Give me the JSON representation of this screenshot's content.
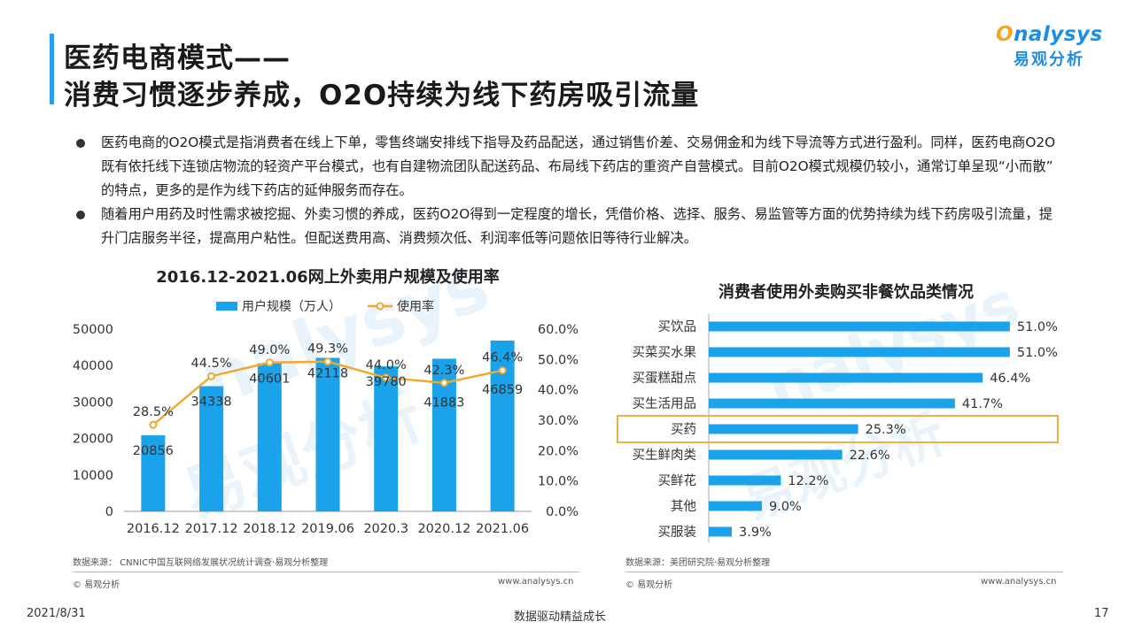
{
  "page": {
    "title_line1": "医药电商模式——",
    "title_line2": "消费习惯逐步养成，O2O持续为线下药房吸引流量",
    "logo_en_prefix": "O",
    "logo_en_rest": "nalysys",
    "logo_cn": "易观分析",
    "bullets": [
      "医药电商的O2O模式是指消费者在线上下单，零售终端安排线下指导及药品配送，通过销售价差、交易佣金和为线下导流等方式进行盈利。同样，医药电商O2O既有依托线下连锁店物流的轻资产平台模式，也有自建物流团队配送药品、布局线下药店的重资产自营模式。目前O2O模式规模仍较小，通常订单呈现“小而散” 的特点，更多的是作为线下药店的延伸服务而存在。",
      "随着用户用药及时性需求被挖掘、外卖习惯的养成，医药O2O得到一定程度的增长，凭借价格、选择、服务、易监管等方面的优势持续为线下药房吸引流量，提升门店服务半径，提高用户粘性。但配送费用高、消费频次低、利润率低等问题依旧等待行业解决。"
    ],
    "left_source": "数据来源：  CNNIC中国互联网络发展状况统计调查·易观分析整理",
    "right_source": "数据来源：美团研究院·易观分析整理",
    "copyright": "© 易观分析",
    "website": "www.analysys.cn",
    "footer_date": "2021/8/31",
    "footer_slogan": "数据驱动精益成长",
    "page_number": "17",
    "watermark_en": "nalysys",
    "watermark_cn": "易观分析"
  },
  "colors": {
    "accent": "#1aa3ea",
    "line": "#f0a830",
    "highlight_border": "#e6b347",
    "brand": "#1e8fe0"
  },
  "chart_data": [
    {
      "type": "bar+line",
      "title": "2016.12-2021.06网上外卖用户规模及使用率",
      "categories": [
        "2016.12",
        "2017.12",
        "2018.12",
        "2019.06",
        "2020.3",
        "2020.12",
        "2021.06"
      ],
      "series": [
        {
          "name": "用户规模（万人）",
          "type": "bar",
          "axis": "left",
          "values": [
            20856,
            34338,
            40601,
            42118,
            39780,
            41883,
            46859
          ]
        },
        {
          "name": "使用率",
          "type": "line",
          "axis": "right",
          "values": [
            28.5,
            44.5,
            49.0,
            49.3,
            44.0,
            42.3,
            46.4
          ],
          "labels": [
            "28.5%",
            "44.5%",
            "49.0%",
            "49.3%",
            "44.0%",
            "42.3%",
            "46.4%"
          ]
        }
      ],
      "y_left": {
        "ticks": [
          "0",
          "10000",
          "20000",
          "30000",
          "40000",
          "50000"
        ],
        "min": 0,
        "max": 50000
      },
      "y_right": {
        "ticks": [
          "0.0%",
          "10.0%",
          "20.0%",
          "30.0%",
          "40.0%",
          "50.0%",
          "60.0%"
        ],
        "min": 0,
        "max": 60
      },
      "legend_position": "top"
    },
    {
      "type": "bar",
      "orientation": "horizontal",
      "title": "消费者使用外卖购买非餐饮品类情况",
      "categories": [
        "买饮品",
        "买菜买水果",
        "买蛋糕甜点",
        "买生活用品",
        "买药",
        "买生鲜肉类",
        "买鲜花",
        "其他",
        "买服装"
      ],
      "values": [
        51.0,
        51.0,
        46.4,
        41.7,
        25.3,
        22.6,
        12.2,
        9.0,
        3.9
      ],
      "labels": [
        "51.0%",
        "51.0%",
        "46.4%",
        "41.7%",
        "25.3%",
        "22.6%",
        "12.2%",
        "9.0%",
        "3.9%"
      ],
      "xlim": [
        0,
        55
      ],
      "highlight": "买药"
    }
  ]
}
